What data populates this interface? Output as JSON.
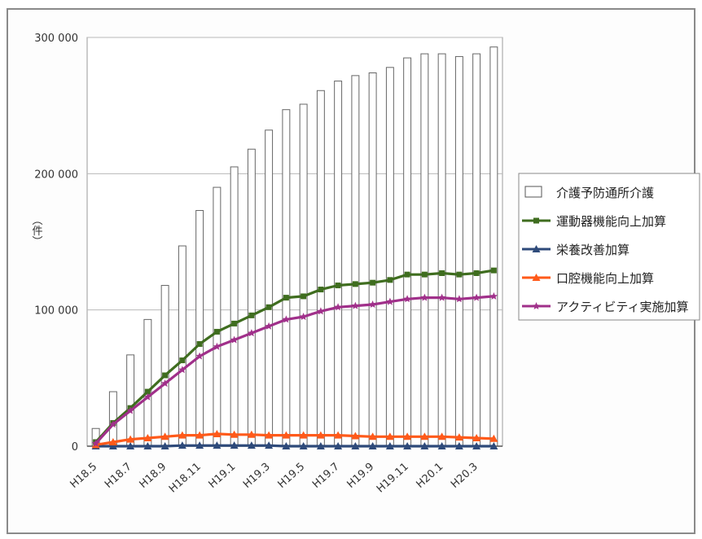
{
  "chart_data": {
    "type": "bar",
    "ylabel": "（件）",
    "ylim": [
      0,
      300000
    ],
    "yticks": [
      0,
      100000,
      200000,
      300000
    ],
    "ytick_labels": [
      "0",
      "100 000",
      "200 000",
      "300 000"
    ],
    "grid": true,
    "legend_position": "right",
    "categories": [
      "H18.5",
      "H18.6",
      "H18.7",
      "H18.8",
      "H18.9",
      "H18.10",
      "H18.11",
      "H18.12",
      "H19.1",
      "H19.2",
      "H19.3",
      "H19.4",
      "H19.5",
      "H19.6",
      "H19.7",
      "H19.8",
      "H19.9",
      "H19.10",
      "H19.11",
      "H19.12",
      "H20.1",
      "H20.2",
      "H20.3",
      "H20.4"
    ],
    "xtick_labels": [
      "H18.5",
      "",
      "H18.7",
      "",
      "H18.9",
      "",
      "H18.11",
      "",
      "H19.1",
      "",
      "H19.3",
      "",
      "H19.5",
      "",
      "H19.7",
      "",
      "H19.9",
      "",
      "H19.11",
      "",
      "H20.1",
      "",
      "H20.3",
      ""
    ],
    "bars": {
      "name": "介護予防通所介護",
      "color": "#ffffff",
      "values": [
        13000,
        40000,
        67000,
        93000,
        118000,
        147000,
        173000,
        190000,
        205000,
        218000,
        232000,
        247000,
        251000,
        261000,
        268000,
        272000,
        274000,
        278000,
        285000,
        288000,
        288000,
        286000,
        288000,
        293000
      ]
    },
    "series": [
      {
        "name": "運動器機能向上加算",
        "color": "#3f6d1f",
        "marker": "square",
        "values": [
          3000,
          17000,
          28000,
          40000,
          52000,
          63000,
          75000,
          84000,
          90000,
          96000,
          102000,
          109000,
          110000,
          115000,
          118000,
          119000,
          120000,
          122000,
          126000,
          126000,
          127000,
          126000,
          127000,
          129000
        ]
      },
      {
        "name": "栄養改善加算",
        "color": "#2e4a7a",
        "marker": "triangle",
        "values": [
          0,
          0,
          0,
          0,
          0,
          500,
          500,
          500,
          500,
          500,
          500,
          0,
          0,
          0,
          0,
          0,
          0,
          0,
          0,
          0,
          0,
          0,
          0,
          0
        ]
      },
      {
        "name": "口腔機能向上加算",
        "color": "#ff5a1a",
        "marker": "triangle",
        "values": [
          1000,
          3000,
          5000,
          6000,
          7000,
          8000,
          8000,
          9000,
          8500,
          8500,
          8000,
          8000,
          8000,
          8000,
          8000,
          7500,
          7000,
          7000,
          7000,
          7000,
          7000,
          6500,
          6000,
          5500
        ]
      },
      {
        "name": "アクティビティ実施加算",
        "color": "#a0308a",
        "marker": "star",
        "values": [
          2000,
          16000,
          26000,
          36000,
          46000,
          56000,
          66000,
          73000,
          78000,
          83000,
          88000,
          93000,
          95000,
          99000,
          102000,
          103000,
          104000,
          106000,
          108000,
          109000,
          109000,
          108000,
          109000,
          110000
        ]
      }
    ]
  }
}
